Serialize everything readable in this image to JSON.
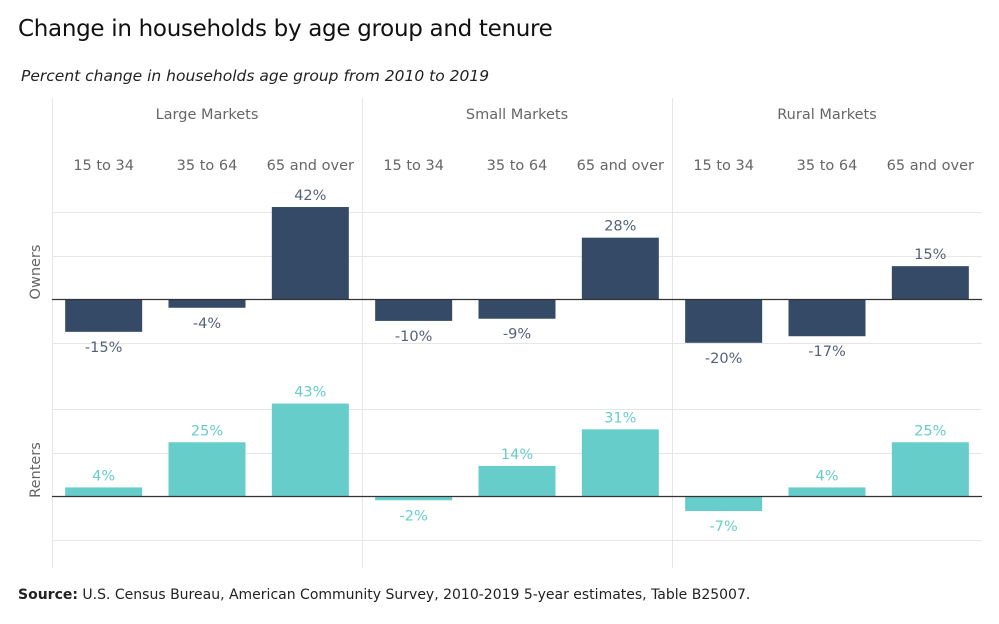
{
  "title": "Change in households by age group and tenure",
  "subtitle": "Percent change in households age group from 2010 to 2019",
  "source": {
    "label": "Source:",
    "text": "U.S. Census Bureau, American Community Survey, 2010-2019 5-year estimates, Table B25007."
  },
  "colors": {
    "owners": "#344a66",
    "renters": "#67cdcb",
    "grid": "#e6e6e6",
    "baseline": "#333333",
    "text": "#666666"
  },
  "chart_data": {
    "type": "bar",
    "panels": [
      "Large Markets",
      "Small Markets",
      "Rural Markets"
    ],
    "categories": [
      "15 to 34",
      "35 to 64",
      "65 and over"
    ],
    "rows": [
      {
        "name": "Owners",
        "color": "#344a66",
        "ylim": [
          -20,
          45
        ],
        "values": [
          [
            -15,
            -4,
            42
          ],
          [
            -10,
            -9,
            28
          ],
          [
            -20,
            -17,
            15
          ]
        ],
        "labels": [
          [
            "-15%",
            "-4%",
            "42%"
          ],
          [
            "-10%",
            "-9%",
            "28%"
          ],
          [
            "-20%",
            "-17%",
            "15%"
          ]
        ]
      },
      {
        "name": "Renters",
        "color": "#67cdcb",
        "ylim": [
          -20,
          45
        ],
        "values": [
          [
            4,
            25,
            43
          ],
          [
            -2,
            14,
            31
          ],
          [
            -7,
            4,
            25
          ]
        ],
        "labels": [
          [
            "4%",
            "25%",
            "43%"
          ],
          [
            "-2%",
            "14%",
            "31%"
          ],
          [
            "-7%",
            "4%",
            "25%"
          ]
        ]
      }
    ],
    "grid": true
  }
}
